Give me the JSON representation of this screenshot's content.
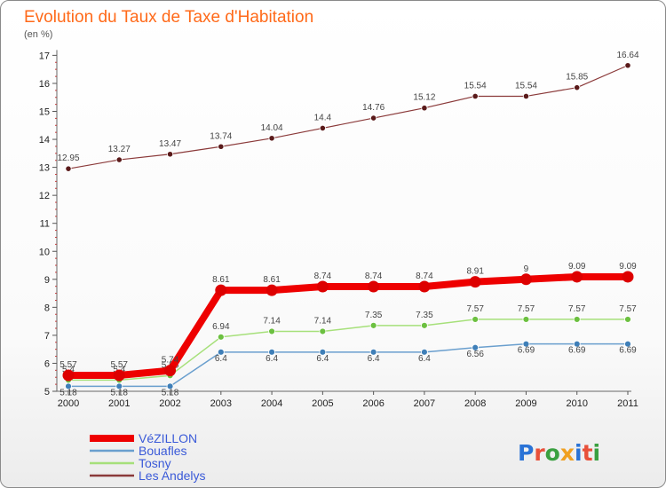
{
  "title": "Evolution du Taux de Taxe d'Habitation",
  "subtitle": "(en %)",
  "logo": {
    "text": "Proxiti",
    "letter_colors": [
      "#2a73d6",
      "#e8503a",
      "#3aa040",
      "#f0a020",
      "#2a73d6",
      "#e8503a",
      "#3aa040"
    ]
  },
  "chart_data": {
    "type": "line",
    "title": "Evolution du Taux de Taxe d'Habitation",
    "subtitle": "(en %)",
    "xlabel": "",
    "ylabel": "(en %)",
    "categories": [
      "2000",
      "2001",
      "2002",
      "2003",
      "2004",
      "2005",
      "2006",
      "2007",
      "2008",
      "2009",
      "2010",
      "2011"
    ],
    "ylim": [
      5,
      17
    ],
    "yticks": [
      5,
      6,
      7,
      8,
      9,
      10,
      11,
      12,
      13,
      14,
      15,
      16,
      17
    ],
    "grid": false,
    "legend_position": "bottom-left",
    "series": [
      {
        "name": "Les Andelys",
        "color": "#8b3a3a",
        "values": [
          12.95,
          13.27,
          13.47,
          13.74,
          14.04,
          14.4,
          14.76,
          15.12,
          15.54,
          15.54,
          15.85,
          16.64
        ],
        "labels": [
          "12.95",
          "13.27",
          "13.47",
          "13.74",
          "14.04",
          "14.4",
          "14.76",
          "15.12",
          "15.54",
          "15.54",
          "15.85",
          "16.64"
        ]
      },
      {
        "name": "Bouafles",
        "color": "#6a9fce",
        "values": [
          5.18,
          5.18,
          5.18,
          6.4,
          6.4,
          6.4,
          6.4,
          6.4,
          6.56,
          6.69,
          6.69,
          6.69
        ],
        "labels": [
          "5.18",
          "5.18",
          "5.18",
          "6.4",
          "6.4",
          "6.4",
          "6.4",
          "6.4",
          "6.56",
          "6.69",
          "6.69",
          "6.69"
        ]
      },
      {
        "name": "Tosny",
        "color": "#a6e07a",
        "values": [
          5.4,
          5.4,
          5.56,
          6.94,
          7.14,
          7.14,
          7.35,
          7.35,
          7.57,
          7.57,
          7.57,
          7.57
        ],
        "labels": [
          "5.4",
          "5.4",
          "5.56",
          "6.94",
          "7.14",
          "7.14",
          "7.35",
          "7.35",
          "7.57",
          "7.57",
          "7.57",
          "7.57"
        ]
      },
      {
        "name": "VéZILLON",
        "color": "#ee0000",
        "values": [
          5.57,
          5.57,
          5.74,
          8.61,
          8.61,
          8.74,
          8.74,
          8.74,
          8.91,
          9,
          9.09,
          9.09
        ],
        "labels": [
          "5.57",
          "5.57",
          "5.74",
          "8.61",
          "8.61",
          "8.74",
          "8.74",
          "8.74",
          "8.91",
          "9",
          "9.09",
          "9.09"
        ]
      }
    ],
    "legend_order": [
      "VéZILLON",
      "Bouafles",
      "Tosny",
      "Les Andelys"
    ]
  }
}
